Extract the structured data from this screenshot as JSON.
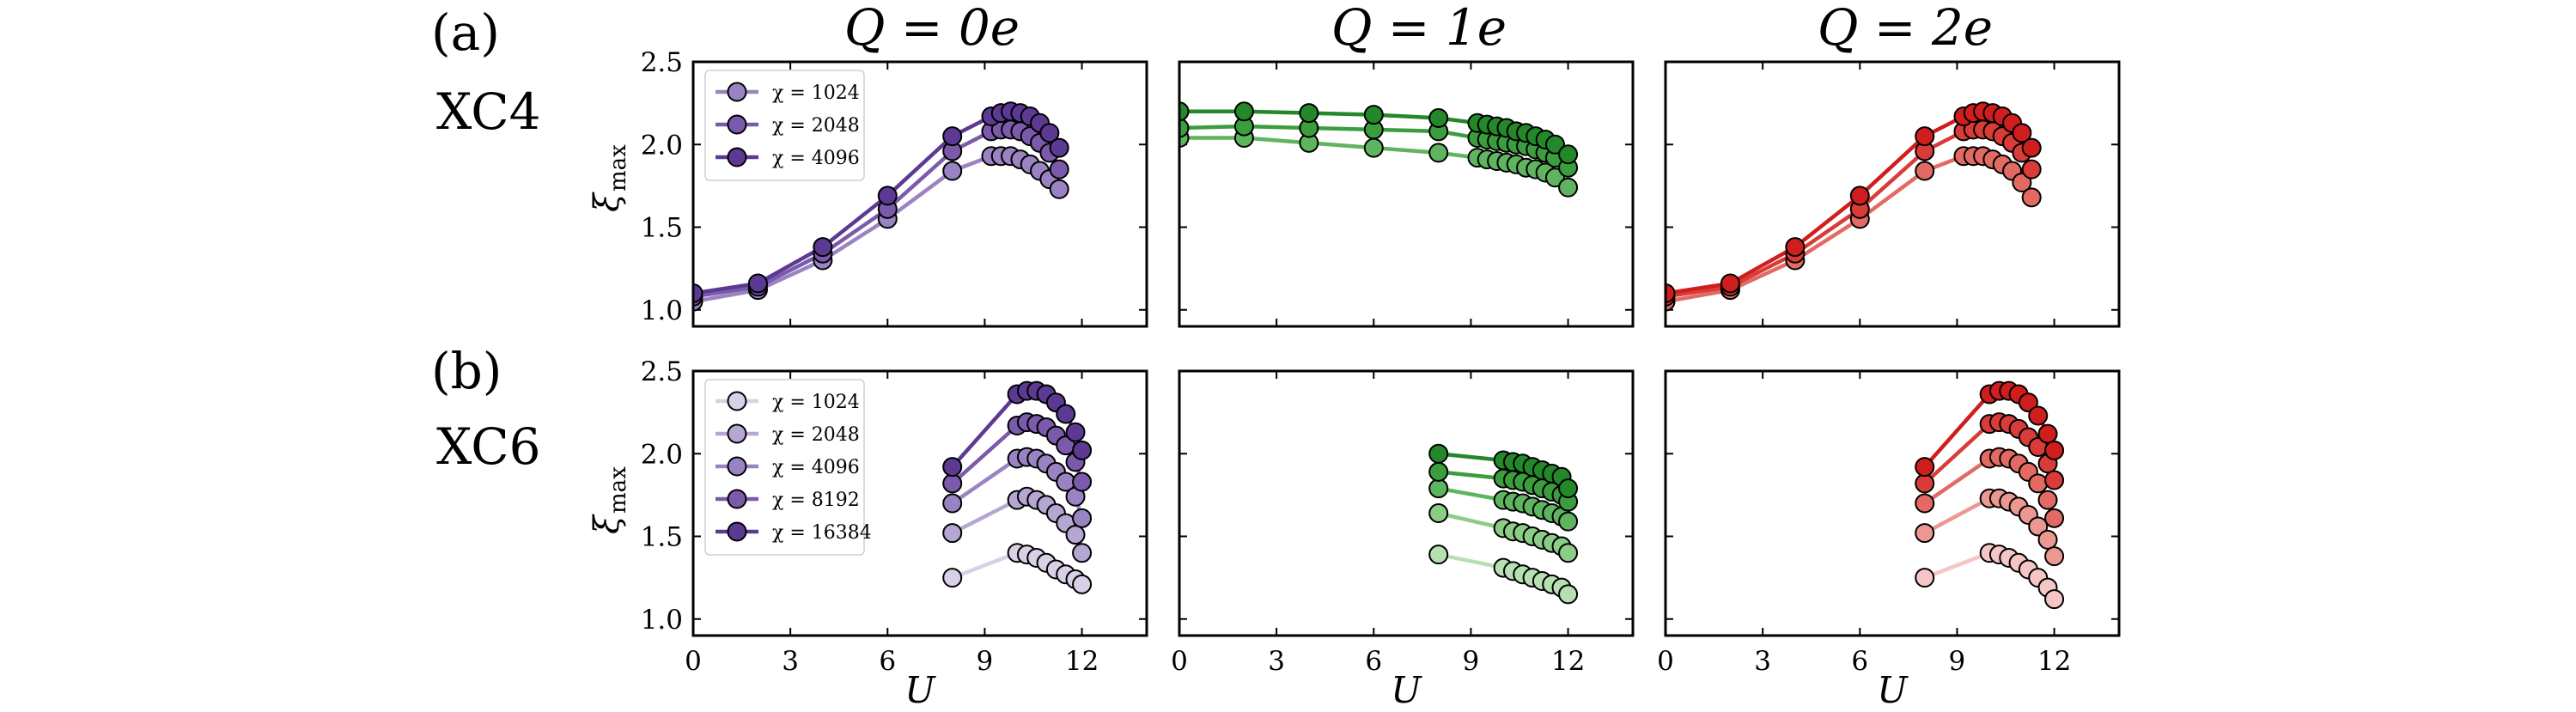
{
  "figure": {
    "column_titles": [
      "Q = 0e",
      "Q = 1e",
      "Q = 2e"
    ],
    "row_panel_labels": [
      "(a)",
      "(b)"
    ],
    "row_system_labels": [
      "XC4",
      "XC6"
    ],
    "ylabel_main": "ξ",
    "ylabel_sub": "max",
    "xlabel": "U"
  },
  "colors": {
    "purple": [
      "#d8d0e7",
      "#b5a6d2",
      "#9a83c2",
      "#7b5aac",
      "#5c3a93"
    ],
    "green": [
      "#b7e0b2",
      "#8bcc86",
      "#5fb55f",
      "#3c9d3f",
      "#24882b"
    ],
    "red": [
      "#f5c6c3",
      "#eb9892",
      "#e26a63",
      "#d93c38",
      "#d01d1d"
    ]
  },
  "chart_data": [
    {
      "type": "line",
      "id": "a-q0",
      "row": 0,
      "col": 0,
      "color": "purple",
      "title": "Q = 0e",
      "xlabel": "",
      "ylabel": "ξmax",
      "xlim": [
        0,
        14
      ],
      "ylim": [
        0.9,
        2.5
      ],
      "xticks": [
        0,
        3,
        6,
        9,
        12
      ],
      "yticks": [
        1.0,
        1.5,
        2.0,
        2.5
      ],
      "ytick_labels": [
        "1.0",
        "1.5",
        "2.0",
        "2.5"
      ],
      "legend": [
        "χ = 1024",
        "χ = 2048",
        "χ = 4096"
      ],
      "x": [
        0,
        2,
        4,
        6,
        8,
        9.2,
        9.5,
        9.8,
        10.1,
        10.4,
        10.7,
        11.0,
        11.3
      ],
      "series": [
        {
          "name": "χ = 1024",
          "values": [
            1.05,
            1.12,
            1.3,
            1.55,
            1.84,
            1.93,
            1.93,
            1.93,
            1.91,
            1.88,
            1.84,
            1.79,
            1.73
          ]
        },
        {
          "name": "χ = 2048",
          "values": [
            1.08,
            1.14,
            1.34,
            1.61,
            1.96,
            2.08,
            2.09,
            2.09,
            2.08,
            2.05,
            2.01,
            1.95,
            1.85
          ]
        },
        {
          "name": "χ = 4096",
          "values": [
            1.1,
            1.16,
            1.38,
            1.69,
            2.05,
            2.17,
            2.19,
            2.2,
            2.19,
            2.17,
            2.13,
            2.07,
            1.98
          ]
        }
      ]
    },
    {
      "type": "line",
      "id": "a-q1",
      "row": 0,
      "col": 1,
      "color": "green",
      "title": "Q = 1e",
      "xlabel": "",
      "ylabel": "",
      "xlim": [
        0,
        14
      ],
      "ylim": [
        0.9,
        2.5
      ],
      "xticks": [
        0,
        3,
        6,
        9,
        12
      ],
      "yticks": [
        1.0,
        1.5,
        2.0,
        2.5
      ],
      "ytick_labels": [],
      "legend": [],
      "x": [
        0,
        2,
        4,
        6,
        8,
        9.2,
        9.5,
        9.8,
        10.1,
        10.4,
        10.7,
        11.0,
        11.3,
        11.6,
        12.0
      ],
      "series": [
        {
          "name": "χ = 1024",
          "values": [
            2.04,
            2.04,
            2.01,
            1.98,
            1.95,
            1.92,
            1.91,
            1.9,
            1.89,
            1.88,
            1.86,
            1.85,
            1.83,
            1.8,
            1.74
          ]
        },
        {
          "name": "χ = 2048",
          "values": [
            2.1,
            2.11,
            2.1,
            2.09,
            2.08,
            2.04,
            2.03,
            2.02,
            2.01,
            2.0,
            1.99,
            1.97,
            1.95,
            1.92,
            1.86
          ]
        },
        {
          "name": "χ = 4096",
          "values": [
            2.2,
            2.2,
            2.19,
            2.18,
            2.16,
            2.13,
            2.12,
            2.11,
            2.1,
            2.08,
            2.07,
            2.05,
            2.03,
            2.0,
            1.94
          ]
        }
      ]
    },
    {
      "type": "line",
      "id": "a-q2",
      "row": 0,
      "col": 2,
      "color": "red",
      "title": "Q = 2e",
      "xlabel": "",
      "ylabel": "",
      "xlim": [
        0,
        14
      ],
      "ylim": [
        0.9,
        2.5
      ],
      "xticks": [
        0,
        3,
        6,
        9,
        12
      ],
      "yticks": [
        1.0,
        1.5,
        2.0,
        2.5
      ],
      "ytick_labels": [],
      "legend": [],
      "x": [
        0,
        2,
        4,
        6,
        8,
        9.2,
        9.5,
        9.8,
        10.1,
        10.4,
        10.7,
        11.0,
        11.3
      ],
      "series": [
        {
          "name": "χ = 1024",
          "values": [
            1.05,
            1.12,
            1.3,
            1.55,
            1.84,
            1.93,
            1.93,
            1.93,
            1.91,
            1.88,
            1.84,
            1.77,
            1.68
          ]
        },
        {
          "name": "χ = 2048",
          "values": [
            1.08,
            1.14,
            1.34,
            1.61,
            1.96,
            2.08,
            2.09,
            2.09,
            2.08,
            2.05,
            2.01,
            1.95,
            1.85
          ]
        },
        {
          "name": "χ = 4096",
          "values": [
            1.1,
            1.16,
            1.38,
            1.69,
            2.05,
            2.17,
            2.19,
            2.2,
            2.19,
            2.17,
            2.13,
            2.07,
            1.98
          ]
        }
      ]
    },
    {
      "type": "line",
      "id": "b-q0",
      "row": 1,
      "col": 0,
      "color": "purple",
      "title": "",
      "xlabel": "U",
      "ylabel": "ξmax",
      "xlim": [
        0,
        14
      ],
      "ylim": [
        0.9,
        2.5
      ],
      "xticks": [
        0,
        3,
        6,
        9,
        12
      ],
      "xtick_labels": [
        "0",
        "3",
        "6",
        "9",
        "12"
      ],
      "yticks": [
        1.0,
        1.5,
        2.0,
        2.5
      ],
      "ytick_labels": [
        "1.0",
        "1.5",
        "2.0",
        "2.5"
      ],
      "legend": [
        "χ = 1024",
        "χ = 2048",
        "χ = 4096",
        "χ = 8192",
        "χ = 16384"
      ],
      "x": [
        8,
        10,
        10.3,
        10.6,
        10.9,
        11.2,
        11.5,
        11.8,
        12.0
      ],
      "series": [
        {
          "name": "χ = 1024",
          "values": [
            1.25,
            1.4,
            1.39,
            1.37,
            1.34,
            1.3,
            1.27,
            1.24,
            1.21
          ]
        },
        {
          "name": "χ = 2048",
          "values": [
            1.52,
            1.72,
            1.74,
            1.72,
            1.69,
            1.64,
            1.58,
            1.51,
            1.4
          ]
        },
        {
          "name": "χ = 4096",
          "values": [
            1.7,
            1.97,
            1.98,
            1.97,
            1.94,
            1.89,
            1.83,
            1.74,
            1.61
          ]
        },
        {
          "name": "χ = 8192",
          "values": [
            1.82,
            2.17,
            2.19,
            2.18,
            2.16,
            2.11,
            2.05,
            1.95,
            1.83
          ]
        },
        {
          "name": "χ = 16384",
          "values": [
            1.92,
            2.36,
            2.38,
            2.38,
            2.36,
            2.31,
            2.24,
            2.13,
            2.02
          ]
        }
      ]
    },
    {
      "type": "line",
      "id": "b-q1",
      "row": 1,
      "col": 1,
      "color": "green",
      "title": "",
      "xlabel": "U",
      "ylabel": "",
      "xlim": [
        0,
        14
      ],
      "ylim": [
        0.9,
        2.5
      ],
      "xticks": [
        0,
        3,
        6,
        9,
        12
      ],
      "xtick_labels": [
        "0",
        "3",
        "6",
        "9",
        "12"
      ],
      "yticks": [
        1.0,
        1.5,
        2.0,
        2.5
      ],
      "ytick_labels": [],
      "legend": [],
      "x": [
        8,
        10,
        10.3,
        10.6,
        10.9,
        11.2,
        11.5,
        11.8,
        12.0
      ],
      "series": [
        {
          "name": "χ = 1024",
          "values": [
            1.39,
            1.31,
            1.29,
            1.27,
            1.25,
            1.23,
            1.21,
            1.19,
            1.15
          ]
        },
        {
          "name": "χ = 2048",
          "values": [
            1.64,
            1.55,
            1.53,
            1.52,
            1.5,
            1.48,
            1.46,
            1.44,
            1.4
          ]
        },
        {
          "name": "χ = 4096",
          "values": [
            1.79,
            1.72,
            1.71,
            1.7,
            1.68,
            1.66,
            1.64,
            1.62,
            1.59
          ]
        },
        {
          "name": "χ = 8192",
          "values": [
            1.89,
            1.85,
            1.84,
            1.83,
            1.81,
            1.79,
            1.77,
            1.75,
            1.71
          ]
        },
        {
          "name": "χ = 16384",
          "values": [
            2.0,
            1.96,
            1.95,
            1.94,
            1.92,
            1.9,
            1.88,
            1.86,
            1.79
          ]
        }
      ]
    },
    {
      "type": "line",
      "id": "b-q2",
      "row": 1,
      "col": 2,
      "color": "red",
      "title": "",
      "xlabel": "U",
      "ylabel": "",
      "xlim": [
        0,
        14
      ],
      "ylim": [
        0.9,
        2.5
      ],
      "xticks": [
        0,
        3,
        6,
        9,
        12
      ],
      "xtick_labels": [
        "0",
        "3",
        "6",
        "9",
        "12"
      ],
      "yticks": [
        1.0,
        1.5,
        2.0,
        2.5
      ],
      "ytick_labels": [],
      "legend": [],
      "x": [
        8,
        10,
        10.3,
        10.6,
        10.9,
        11.2,
        11.5,
        11.8,
        12.0
      ],
      "series": [
        {
          "name": "χ = 1024",
          "values": [
            1.25,
            1.4,
            1.39,
            1.37,
            1.34,
            1.3,
            1.25,
            1.19,
            1.12
          ]
        },
        {
          "name": "χ = 2048",
          "values": [
            1.52,
            1.73,
            1.73,
            1.71,
            1.68,
            1.63,
            1.56,
            1.48,
            1.38
          ]
        },
        {
          "name": "χ = 4096",
          "values": [
            1.7,
            1.97,
            1.98,
            1.97,
            1.94,
            1.89,
            1.82,
            1.72,
            1.61
          ]
        },
        {
          "name": "χ = 8192",
          "values": [
            1.82,
            2.18,
            2.19,
            2.18,
            2.15,
            2.1,
            2.04,
            1.94,
            1.84
          ]
        },
        {
          "name": "χ = 16384",
          "values": [
            1.92,
            2.36,
            2.38,
            2.38,
            2.36,
            2.31,
            2.23,
            2.12,
            2.02
          ]
        }
      ]
    }
  ]
}
